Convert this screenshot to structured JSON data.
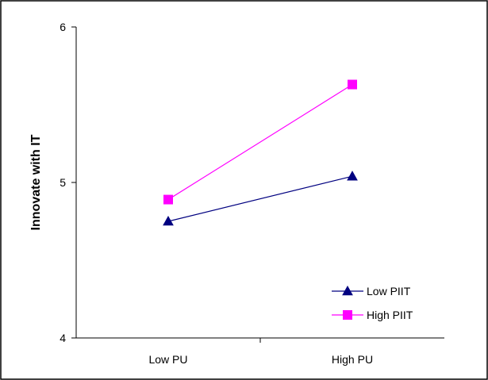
{
  "chart_data": {
    "type": "line",
    "title": "",
    "xlabel": "",
    "ylabel": "Innovate with IT",
    "categories": [
      "Low PU",
      "High PU"
    ],
    "ylim": [
      4,
      6
    ],
    "yticks": [
      "4",
      "5",
      "6"
    ],
    "grid": false,
    "legend_position": "bottom-right",
    "series": [
      {
        "name": "Low PIIT",
        "values": [
          4.75,
          5.04
        ],
        "color": "#000080",
        "marker": "triangle"
      },
      {
        "name": "High PIIT",
        "values": [
          4.89,
          5.63
        ],
        "color": "#ff00ff",
        "marker": "square"
      }
    ]
  }
}
